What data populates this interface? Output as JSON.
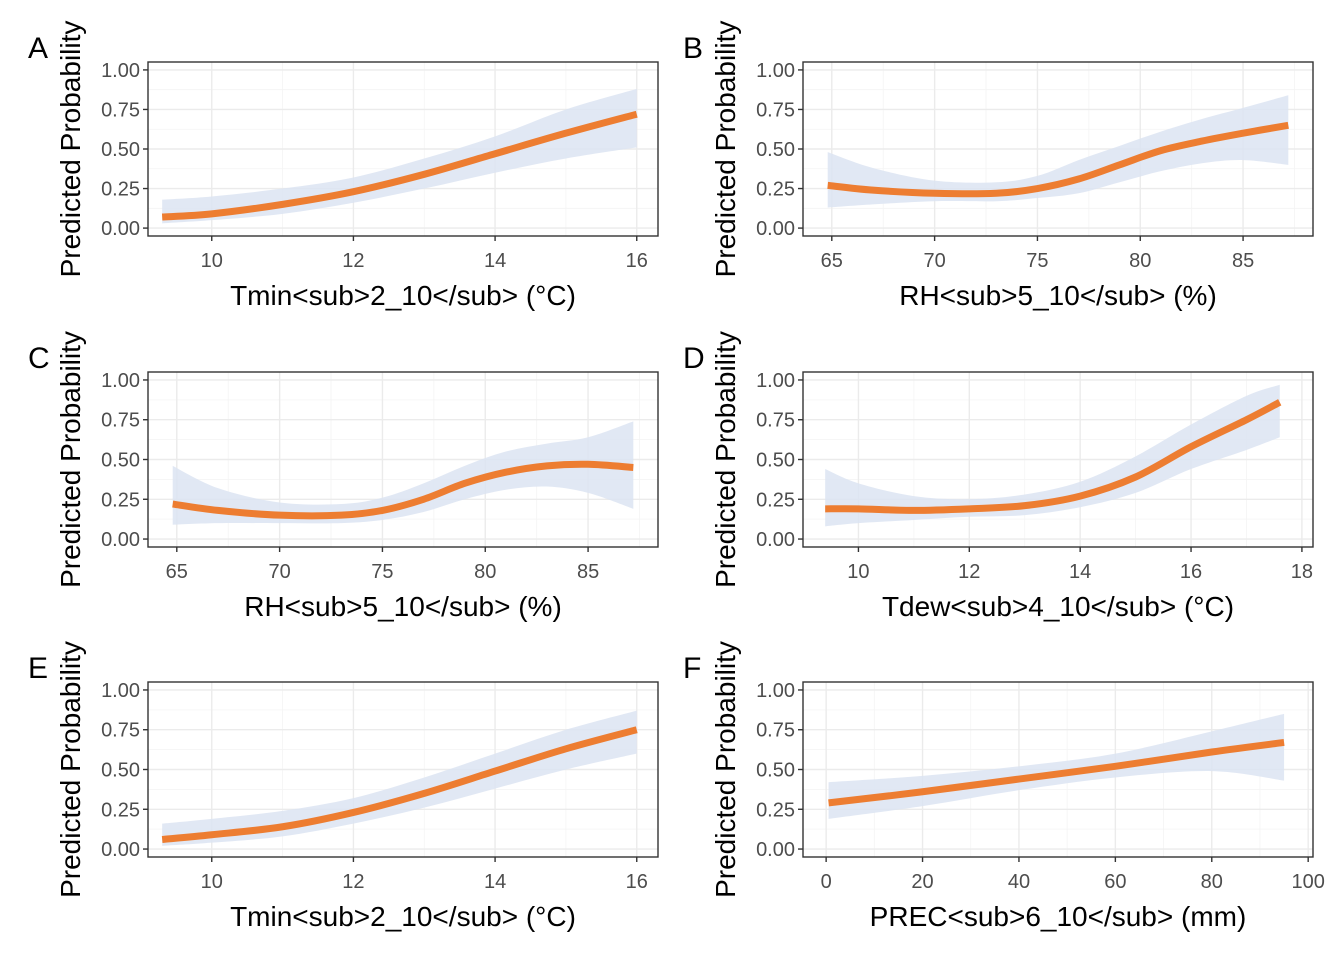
{
  "chart_data": [
    {
      "panel": "A",
      "type": "line",
      "xlabel": "Tmin<sub>2_10</sub> (°C)",
      "ylabel": "Predicted Probability",
      "xlim": [
        9.1,
        16.3
      ],
      "ylim": [
        -0.05,
        1.05
      ],
      "xticks": [
        10,
        12,
        14,
        16
      ],
      "xtick_labels": [
        "10",
        "12",
        "14",
        "16"
      ],
      "yticks": [
        0,
        0.25,
        0.5,
        0.75,
        1
      ],
      "ytick_labels": [
        "0.00",
        "0.25",
        "0.50",
        "0.75",
        "1.00"
      ],
      "grid": true,
      "line_color": "#ED7D31",
      "band_color": "#DCE4F2",
      "series": [
        {
          "x": [
            9.3,
            10,
            11,
            12,
            13,
            14,
            15,
            16
          ],
          "y": [
            0.07,
            0.09,
            0.15,
            0.23,
            0.34,
            0.47,
            0.6,
            0.72
          ],
          "lower": [
            0.03,
            0.05,
            0.09,
            0.16,
            0.25,
            0.35,
            0.44,
            0.51
          ],
          "upper": [
            0.18,
            0.2,
            0.25,
            0.32,
            0.44,
            0.58,
            0.75,
            0.88
          ]
        }
      ]
    },
    {
      "panel": "B",
      "type": "line",
      "xlabel": "RH<sub>5_10</sub> (%)",
      "ylabel": "Predicted Probability",
      "xlim": [
        63.6,
        88.4
      ],
      "ylim": [
        -0.05,
        1.05
      ],
      "xticks": [
        65,
        70,
        75,
        80,
        85
      ],
      "xtick_labels": [
        "65",
        "70",
        "75",
        "80",
        "85"
      ],
      "yticks": [
        0,
        0.25,
        0.5,
        0.75,
        1
      ],
      "ytick_labels": [
        "0.00",
        "0.25",
        "0.50",
        "0.75",
        "1.00"
      ],
      "grid": true,
      "line_color": "#ED7D31",
      "band_color": "#DCE4F2",
      "series": [
        {
          "x": [
            64.8,
            67,
            70,
            73,
            75,
            77,
            79,
            81,
            83,
            85,
            87.2
          ],
          "y": [
            0.27,
            0.24,
            0.22,
            0.22,
            0.25,
            0.31,
            0.4,
            0.49,
            0.55,
            0.6,
            0.65
          ],
          "lower": [
            0.13,
            0.15,
            0.17,
            0.17,
            0.19,
            0.22,
            0.29,
            0.36,
            0.41,
            0.43,
            0.4
          ],
          "upper": [
            0.48,
            0.38,
            0.3,
            0.29,
            0.33,
            0.43,
            0.52,
            0.61,
            0.69,
            0.76,
            0.84
          ]
        }
      ]
    },
    {
      "panel": "C",
      "type": "line",
      "xlabel": "RH<sub>5_10</sub> (%)",
      "ylabel": "Predicted Probability",
      "xlim": [
        63.6,
        88.4
      ],
      "ylim": [
        -0.05,
        1.05
      ],
      "xticks": [
        65,
        70,
        75,
        80,
        85
      ],
      "xtick_labels": [
        "65",
        "70",
        "75",
        "80",
        "85"
      ],
      "yticks": [
        0,
        0.25,
        0.5,
        0.75,
        1
      ],
      "ytick_labels": [
        "0.00",
        "0.25",
        "0.50",
        "0.75",
        "1.00"
      ],
      "grid": true,
      "line_color": "#ED7D31",
      "band_color": "#DCE4F2",
      "series": [
        {
          "x": [
            64.8,
            67,
            70,
            73,
            75,
            77,
            79,
            81,
            83,
            85,
            87.2
          ],
          "y": [
            0.22,
            0.18,
            0.15,
            0.15,
            0.18,
            0.25,
            0.35,
            0.42,
            0.46,
            0.47,
            0.45
          ],
          "lower": [
            0.09,
            0.1,
            0.1,
            0.1,
            0.12,
            0.17,
            0.25,
            0.31,
            0.33,
            0.29,
            0.19
          ],
          "upper": [
            0.46,
            0.32,
            0.23,
            0.22,
            0.26,
            0.35,
            0.46,
            0.55,
            0.6,
            0.64,
            0.74
          ]
        }
      ]
    },
    {
      "panel": "D",
      "type": "line",
      "xlabel": "Tdew<sub>4_10</sub> (°C)",
      "ylabel": "Predicted Probability",
      "xlim": [
        9,
        18.2
      ],
      "ylim": [
        -0.05,
        1.05
      ],
      "xticks": [
        10,
        12,
        14,
        16,
        18
      ],
      "xtick_labels": [
        "10",
        "12",
        "14",
        "16",
        "18"
      ],
      "yticks": [
        0,
        0.25,
        0.5,
        0.75,
        1
      ],
      "ytick_labels": [
        "0.00",
        "0.25",
        "0.50",
        "0.75",
        "1.00"
      ],
      "grid": true,
      "line_color": "#ED7D31",
      "band_color": "#DCE4F2",
      "series": [
        {
          "x": [
            9.4,
            10,
            11,
            12,
            13,
            14,
            15,
            16,
            17,
            17.6
          ],
          "y": [
            0.19,
            0.19,
            0.18,
            0.19,
            0.21,
            0.27,
            0.39,
            0.58,
            0.75,
            0.86
          ],
          "lower": [
            0.08,
            0.1,
            0.12,
            0.14,
            0.15,
            0.2,
            0.29,
            0.44,
            0.56,
            0.64
          ],
          "upper": [
            0.44,
            0.35,
            0.27,
            0.25,
            0.28,
            0.36,
            0.52,
            0.72,
            0.9,
            0.97
          ]
        }
      ]
    },
    {
      "panel": "E",
      "type": "line",
      "xlabel": "Tmin<sub>2_10</sub> (°C)",
      "ylabel": "Predicted Probability",
      "xlim": [
        9.1,
        16.3
      ],
      "ylim": [
        -0.05,
        1.05
      ],
      "xticks": [
        10,
        12,
        14,
        16
      ],
      "xtick_labels": [
        "10",
        "12",
        "14",
        "16"
      ],
      "yticks": [
        0,
        0.25,
        0.5,
        0.75,
        1
      ],
      "ytick_labels": [
        "0.00",
        "0.25",
        "0.50",
        "0.75",
        "1.00"
      ],
      "grid": true,
      "line_color": "#ED7D31",
      "band_color": "#DCE4F2",
      "series": [
        {
          "x": [
            9.3,
            10,
            11,
            12,
            13,
            14,
            15,
            16
          ],
          "y": [
            0.06,
            0.09,
            0.14,
            0.23,
            0.35,
            0.49,
            0.63,
            0.75
          ],
          "lower": [
            0.02,
            0.04,
            0.08,
            0.16,
            0.26,
            0.38,
            0.5,
            0.6
          ],
          "upper": [
            0.16,
            0.19,
            0.24,
            0.32,
            0.45,
            0.6,
            0.75,
            0.87
          ]
        }
      ]
    },
    {
      "panel": "F",
      "type": "line",
      "xlabel": "PREC<sub>6_10</sub> (mm)",
      "ylabel": "Predicted Probability",
      "xlim": [
        -4.8,
        101
      ],
      "ylim": [
        -0.05,
        1.05
      ],
      "xticks": [
        0,
        20,
        40,
        60,
        80,
        100
      ],
      "xtick_labels": [
        "0",
        "20",
        "40",
        "60",
        "80",
        "100"
      ],
      "yticks": [
        0,
        0.25,
        0.5,
        0.75,
        1
      ],
      "ytick_labels": [
        "0.00",
        "0.25",
        "0.50",
        "0.75",
        "1.00"
      ],
      "grid": true,
      "line_color": "#ED7D31",
      "band_color": "#DCE4F2",
      "series": [
        {
          "x": [
            0.5,
            20,
            40,
            60,
            80,
            95
          ],
          "y": [
            0.29,
            0.36,
            0.44,
            0.52,
            0.61,
            0.67
          ],
          "lower": [
            0.19,
            0.27,
            0.37,
            0.45,
            0.49,
            0.43
          ],
          "upper": [
            0.42,
            0.46,
            0.52,
            0.6,
            0.74,
            0.85
          ]
        }
      ]
    }
  ]
}
